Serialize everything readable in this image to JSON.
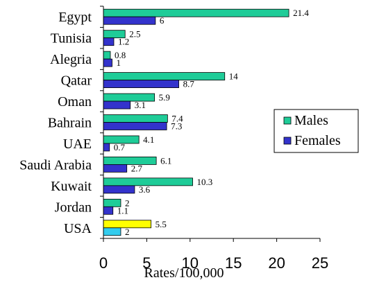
{
  "chart_data": {
    "type": "bar",
    "orientation": "horizontal",
    "categories": [
      "Egypt",
      "Tunisia",
      "Alegria",
      "Qatar",
      "Oman",
      "Bahrain",
      "UAE",
      "Saudi Arabia",
      "Kuwait",
      "Jordan",
      "USA"
    ],
    "series": [
      {
        "name": "Males",
        "values": [
          21.4,
          2.5,
          0.8,
          14,
          5.9,
          7.4,
          4.1,
          6.1,
          10.3,
          2,
          5.5
        ],
        "value_labels": [
          "21.4",
          "2.5",
          "0.8",
          "14",
          "5.9",
          "7.4",
          "4.1",
          "6.1",
          "10.3",
          "2",
          "5.5"
        ],
        "color": "#1fcc98",
        "highlight_color": "#ffff00"
      },
      {
        "name": "Females",
        "values": [
          6,
          1.2,
          1,
          8.7,
          3.1,
          7.3,
          0.7,
          2.7,
          3.6,
          1.1,
          2
        ],
        "value_labels": [
          "6",
          "1.2",
          "1",
          "8.7",
          "3.1",
          "7.3",
          "0.7",
          "2.7",
          "3.6",
          "1.1",
          "2"
        ],
        "color": "#3333cc",
        "highlight_color": "#33ccee"
      }
    ],
    "highlight_category": "USA",
    "xlabel": "Rates/100,000",
    "ylabel": "",
    "title": "",
    "xlim": [
      0,
      25
    ],
    "xticks": [
      0,
      5,
      10,
      15,
      20,
      25
    ],
    "xtick_labels": [
      "0",
      "5",
      "10",
      "15",
      "20",
      "25"
    ],
    "grid": false,
    "legend_position": "right"
  }
}
